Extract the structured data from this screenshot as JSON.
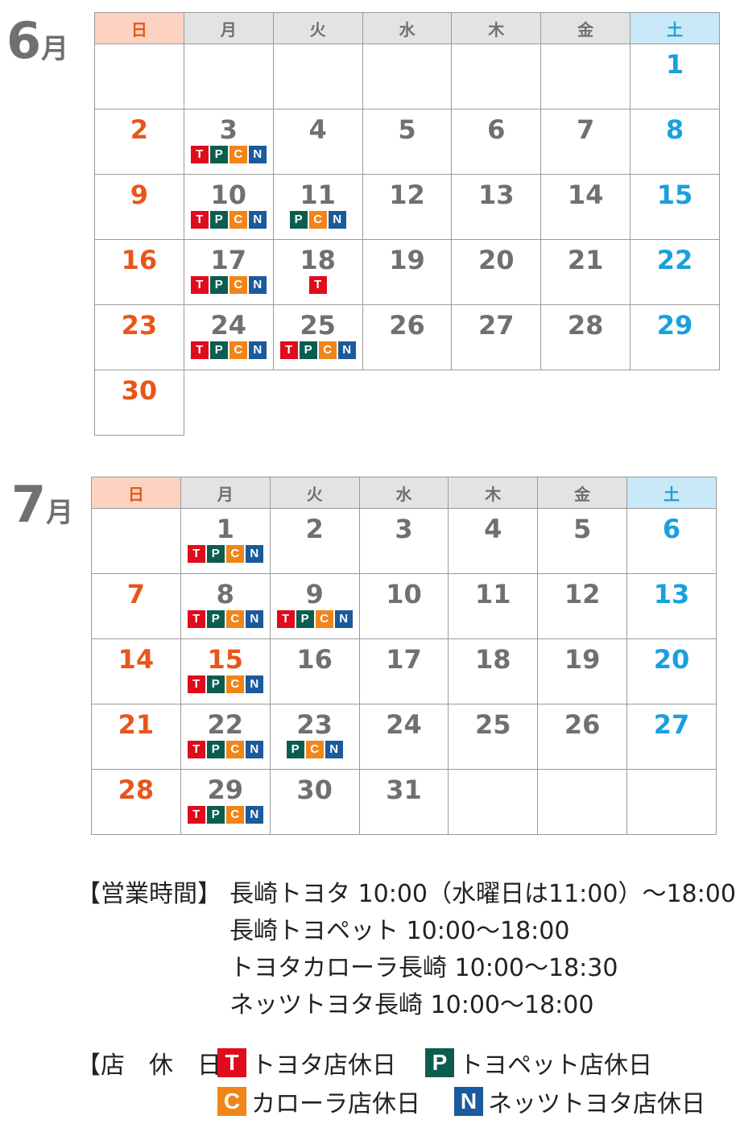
{
  "weekdays": [
    "日",
    "月",
    "火",
    "水",
    "木",
    "金",
    "土"
  ],
  "month_unit": "月",
  "months": [
    {
      "num": "6",
      "weeks": [
        [
          null,
          null,
          null,
          null,
          null,
          null,
          {
            "d": "1"
          }
        ],
        [
          {
            "d": "2"
          },
          {
            "d": "3",
            "b": [
              "T",
              "P",
              "C",
              "N"
            ]
          },
          {
            "d": "4"
          },
          {
            "d": "5"
          },
          {
            "d": "6"
          },
          {
            "d": "7"
          },
          {
            "d": "8"
          }
        ],
        [
          {
            "d": "9"
          },
          {
            "d": "10",
            "b": [
              "T",
              "P",
              "C",
              "N"
            ]
          },
          {
            "d": "11",
            "b": [
              "P",
              "C",
              "N"
            ]
          },
          {
            "d": "12"
          },
          {
            "d": "13"
          },
          {
            "d": "14"
          },
          {
            "d": "15"
          }
        ],
        [
          {
            "d": "16"
          },
          {
            "d": "17",
            "b": [
              "T",
              "P",
              "C",
              "N"
            ]
          },
          {
            "d": "18",
            "b": [
              "T"
            ]
          },
          {
            "d": "19"
          },
          {
            "d": "20"
          },
          {
            "d": "21"
          },
          {
            "d": "22"
          }
        ],
        [
          {
            "d": "23"
          },
          {
            "d": "24",
            "b": [
              "T",
              "P",
              "C",
              "N"
            ]
          },
          {
            "d": "25",
            "b": [
              "T",
              "P",
              "C",
              "N"
            ]
          },
          {
            "d": "26"
          },
          {
            "d": "27"
          },
          {
            "d": "28"
          },
          {
            "d": "29"
          }
        ],
        [
          {
            "d": "30"
          },
          "none",
          "none",
          "none",
          "none",
          "none",
          "none"
        ]
      ]
    },
    {
      "num": "7",
      "weeks": [
        [
          null,
          {
            "d": "1",
            "b": [
              "T",
              "P",
              "C",
              "N"
            ]
          },
          {
            "d": "2"
          },
          {
            "d": "3"
          },
          {
            "d": "4"
          },
          {
            "d": "5"
          },
          {
            "d": "6"
          }
        ],
        [
          {
            "d": "7"
          },
          {
            "d": "8",
            "b": [
              "T",
              "P",
              "C",
              "N"
            ]
          },
          {
            "d": "9",
            "b": [
              "T",
              "P",
              "C",
              "N"
            ]
          },
          {
            "d": "10"
          },
          {
            "d": "11"
          },
          {
            "d": "12"
          },
          {
            "d": "13"
          }
        ],
        [
          {
            "d": "14"
          },
          {
            "d": "15",
            "b": [
              "T",
              "P",
              "C",
              "N"
            ],
            "hol": true
          },
          {
            "d": "16"
          },
          {
            "d": "17"
          },
          {
            "d": "18"
          },
          {
            "d": "19"
          },
          {
            "d": "20"
          }
        ],
        [
          {
            "d": "21"
          },
          {
            "d": "22",
            "b": [
              "T",
              "P",
              "C",
              "N"
            ]
          },
          {
            "d": "23",
            "b": [
              "P",
              "C",
              "N"
            ]
          },
          {
            "d": "24"
          },
          {
            "d": "25"
          },
          {
            "d": "26"
          },
          {
            "d": "27"
          }
        ],
        [
          {
            "d": "28"
          },
          {
            "d": "29",
            "b": [
              "T",
              "P",
              "C",
              "N"
            ]
          },
          {
            "d": "30"
          },
          {
            "d": "31"
          },
          null,
          null,
          null
        ]
      ]
    }
  ],
  "hours": {
    "label": "【営業時間】",
    "lines": [
      "長崎トヨタ 10:00（水曜日は11:00）～18:00",
      "長崎トヨペット 10:00～18:00",
      "トヨタカローラ長崎 10:00～18:30",
      "ネッツトヨタ長崎 10:00～18:00"
    ]
  },
  "closed": {
    "label": "【店　休　日】",
    "items": [
      {
        "code": "T",
        "text": "トヨタ店休日"
      },
      {
        "code": "P",
        "text": "トヨペット店休日"
      },
      {
        "code": "C",
        "text": "カローラ店休日"
      },
      {
        "code": "N",
        "text": "ネッツトヨタ店休日"
      }
    ]
  },
  "colors": {
    "T": "#e00b1c",
    "P": "#0b5e4f",
    "C": "#f08519",
    "N": "#1b5a9c",
    "sun": "#e8561a",
    "sat": "#1aa0dc"
  }
}
